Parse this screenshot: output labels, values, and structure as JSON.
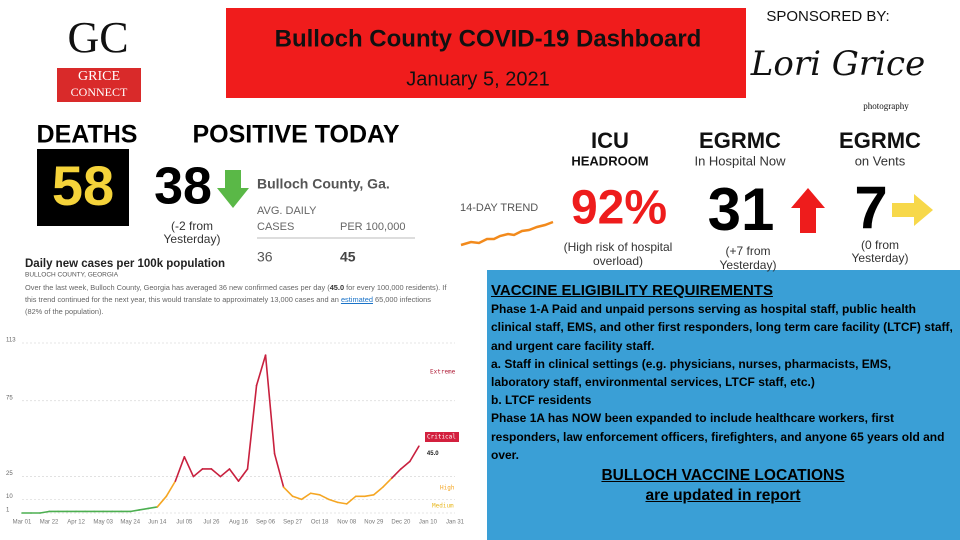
{
  "logo": {
    "initials": "GC",
    "line1": "GRICE",
    "line2": "CONNECT"
  },
  "header": {
    "title": "Bulloch County COVID-19 Dashboard",
    "date": "January 5, 2021"
  },
  "sponsor": {
    "label": "SPONSORED BY:",
    "name": "Lori Grice",
    "tagline": "photography"
  },
  "deaths": {
    "label": "DEATHS",
    "value": "58"
  },
  "positive": {
    "label": "POSITIVE TODAY",
    "value": "38",
    "change": [
      "(-2 from",
      "Yesterday)"
    ]
  },
  "county_box": {
    "name": "Bulloch County, Ga.",
    "col1": [
      "AVG. DAILY",
      "CASES"
    ],
    "col2": "PER 100,000",
    "value1": "36",
    "value2": "45"
  },
  "trend": {
    "label": "14-DAY TREND"
  },
  "icu": {
    "label": "ICU",
    "sub": "HEADROOM",
    "value": "92%",
    "note": [
      "(High risk of hospital",
      "overload)"
    ]
  },
  "hospital": {
    "label": "EGRMC",
    "sub": "In Hospital Now",
    "value": "31",
    "note": [
      "(+7 from",
      "Yesterday)"
    ]
  },
  "vents": {
    "label": "EGRMC",
    "sub": "on Vents",
    "value": "7",
    "note": [
      "(0 from",
      "Yesterday)"
    ]
  },
  "chart_data": {
    "type": "line",
    "title": "Daily new cases per 100k population",
    "subtitle": "BULLOCH COUNTY, GEORGIA",
    "description": [
      "Over the last week, Bulloch County, Georgia has averaged 36 new confirmed cases per day (",
      "45.0",
      " for every 100,000 residents). If this trend continued for the next year, this would translate to approximately 13,000 cases and an ",
      "estimated",
      " 65,000 infections (82% of the population)."
    ],
    "categories": [
      "Mar 01",
      null,
      null,
      "Mar 22",
      null,
      null,
      "Apr 12",
      null,
      null,
      "May 03",
      null,
      null,
      "May 24",
      null,
      null,
      "Jun 14",
      null,
      null,
      "Jul 05",
      null,
      null,
      "Jul 26",
      null,
      null,
      "Aug 16",
      null,
      null,
      "Sep 06",
      null,
      null,
      "Sep 27",
      null,
      null,
      "Oct 18",
      null,
      null,
      "Nov 08",
      null,
      null,
      "Nov 29",
      null,
      null,
      "Dec 20",
      null,
      null,
      "Jan 10",
      null,
      null,
      "Jan 31"
    ],
    "values": [
      1,
      1,
      1,
      2,
      2,
      2,
      2,
      2,
      2,
      2,
      2,
      2,
      2,
      3,
      4,
      5,
      12,
      22,
      38,
      25,
      30,
      30,
      25,
      30,
      22,
      30,
      85,
      105,
      40,
      18,
      12,
      10,
      14,
      13,
      10,
      8,
      7,
      12,
      12,
      13,
      18,
      24,
      30,
      35,
      45,
      null,
      null,
      null,
      null
    ],
    "value_labels": [
      null,
      null,
      null,
      null,
      null,
      null,
      null,
      null,
      null,
      null,
      null,
      null,
      null,
      null,
      null,
      null,
      null,
      null,
      null,
      null,
      null,
      null,
      null,
      null,
      null,
      null,
      null,
      null,
      null,
      null,
      null,
      null,
      null,
      null,
      null,
      null,
      null,
      null,
      null,
      null,
      null,
      null,
      null,
      null,
      "45.0",
      null,
      null,
      null,
      null
    ],
    "ylim": [
      1,
      113
    ],
    "yticks": [
      1,
      10,
      25,
      75,
      113
    ],
    "grid": true,
    "annotations": [
      "Extreme",
      "Critical",
      "High",
      "Medium"
    ]
  },
  "vaccine": {
    "heading": "VACCINE ELIGIBILITY REQUIREMENTS",
    "paragraphs": [
      "Phase 1-A Paid and unpaid persons serving as hospital staff, public health clinical staff, EMS, and other first responders, long term care facility (LTCF) staff, and urgent care facility staff.",
      "a. Staff in clinical settings (e.g. physicians, nurses, pharmacists, EMS, laboratory staff, environmental services, LTCF staff, etc.)",
      "b. LTCF residents",
      "Phase 1A has NOW been expanded to include healthcare workers, first responders, law enforcement officers, firefighters, and anyone 65 years old and over."
    ],
    "footer": [
      "BULLOCH VACCINE LOCATIONS",
      "are updated in report"
    ]
  }
}
